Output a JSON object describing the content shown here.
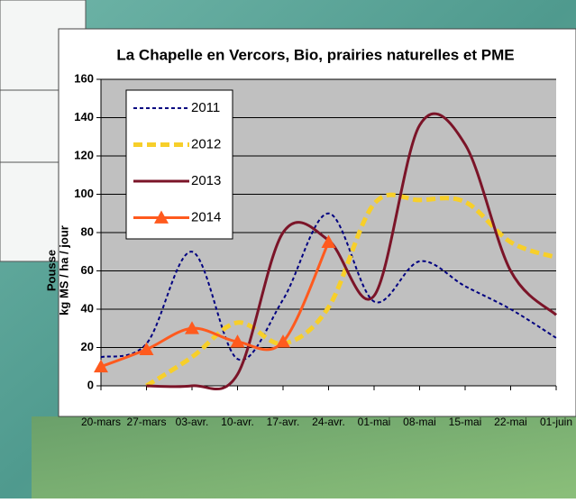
{
  "chart_data": {
    "type": "line",
    "title": "La Chapelle en Vercors, Bio, prairies naturelles et PME",
    "y_label": [
      "Pousse",
      "kg MS / ha / jour"
    ],
    "categories": [
      "20-mars",
      "27-mars",
      "03-avr.",
      "10-avr.",
      "17-avr.",
      "24-avr.",
      "01-mai",
      "08-mai",
      "15-mai",
      "22-mai",
      "01-juin"
    ],
    "series": [
      {
        "name": "2011",
        "color": "#000080",
        "dash": "4 3",
        "values": [
          15,
          22,
          70,
          14,
          45,
          90,
          44,
          65,
          52,
          40,
          25
        ]
      },
      {
        "name": "2012",
        "color": "#f7cf2a",
        "dash": "10 5",
        "values": [
          null,
          0,
          15,
          33,
          22,
          41,
          95,
          97,
          96,
          75,
          67
        ]
      },
      {
        "name": "2013",
        "color": "#7b1428",
        "dash": "",
        "values": [
          null,
          0,
          0,
          6,
          80,
          76,
          47,
          136,
          126,
          60,
          37
        ]
      },
      {
        "name": "2014",
        "color": "#ff5a1e",
        "dash": "",
        "marker": "triangle",
        "values": [
          10,
          19,
          30,
          23,
          23,
          75,
          null,
          null,
          null,
          null,
          null
        ]
      }
    ],
    "ylim": [
      0,
      160
    ],
    "yticks": [
      0,
      20,
      40,
      60,
      80,
      100,
      120,
      140,
      160
    ],
    "grid": true,
    "legend": "upper-left"
  }
}
